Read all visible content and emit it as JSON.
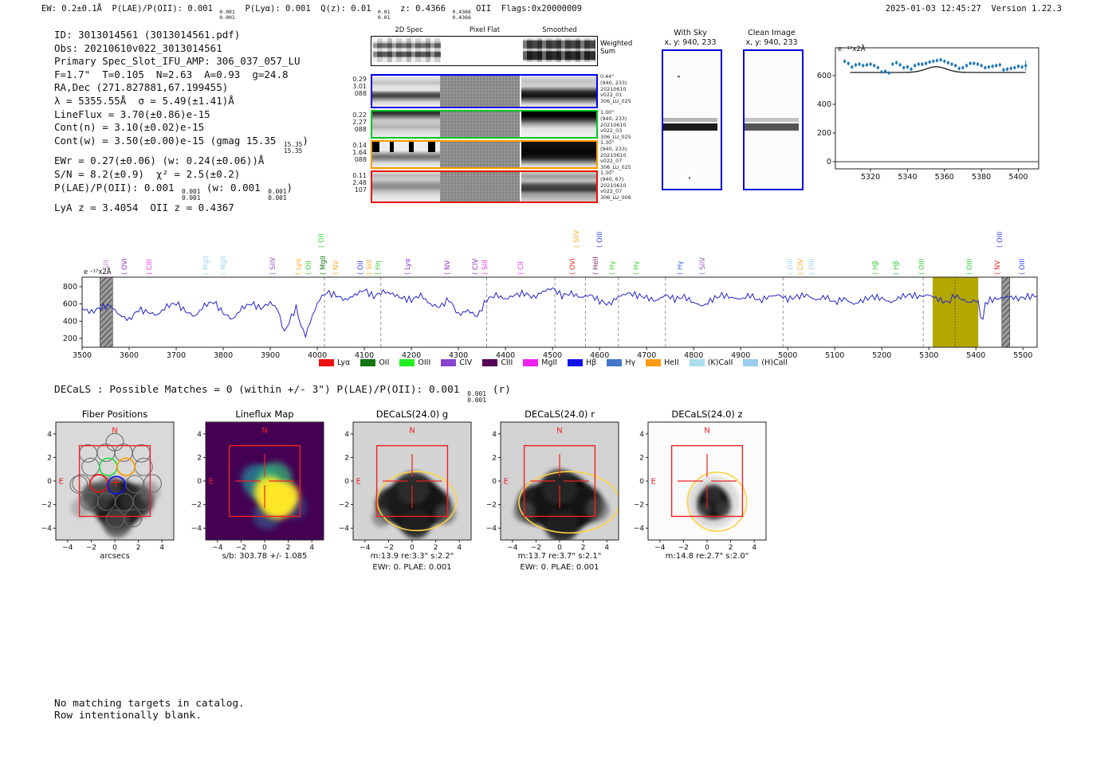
{
  "header": {
    "tokens": [
      {
        "t": "EW: 0.2±0.1Å  P(LAE)/P(OII): 0.001 "
      },
      {
        "frac": [
          "0.001",
          "0.001"
        ]
      },
      {
        "t": "  P(Lyα): 0.001  Q(z): 0.01 "
      },
      {
        "frac": [
          "0.01",
          "0.01"
        ]
      },
      {
        "t": "  z: 0.4366 "
      },
      {
        "frac": [
          "0.4366",
          "0.4366"
        ]
      },
      {
        "t": " OII  Flags:0x20000009"
      }
    ],
    "timestamp": "2025-01-03 12:45:27  Version 1.22.3"
  },
  "info": {
    "lines": [
      [
        {
          "t": "ID: 3013014561 (3013014561.pdf)"
        }
      ],
      [
        {
          "t": "Obs: 20210610v022_3013014561"
        }
      ],
      [
        {
          "t": "Primary Spec_Slot_IFU_AMP: 306_037_057_LU"
        }
      ],
      [
        {
          "t": "F=1.7\"  T=0.105  N=2.63  A=0.93  g=24.8"
        }
      ],
      [
        {
          "t": "RA,Dec (271.827881,67.199455)"
        }
      ],
      [
        {
          "t": "λ = 5355.55Å  σ = 5.49(±1.41)Å"
        }
      ],
      [
        {
          "t": "LineFlux = 3.70(±0.86)e-15"
        }
      ],
      [
        {
          "t": "Cont(n) = 3.10(±0.02)e-15"
        }
      ],
      [
        {
          "t": "Cont(w) = 3.50(±0.00)e-15 (gmag 15.35 "
        },
        {
          "frac": [
            "15.35",
            "15.35"
          ]
        },
        {
          "t": ")"
        }
      ],
      [
        {
          "t": "EWr = 0.27(±0.06) (w: 0.24(±0.06))Å"
        }
      ],
      [
        {
          "t": "S/N = 8.2(±0.9)  χ² = 2.5(±0.2)"
        }
      ],
      [
        {
          "t": "P(LAE)/P(OII): 0.001 "
        },
        {
          "frac": [
            "0.001",
            "0.001"
          ]
        },
        {
          "t": " (w: 0.001 "
        },
        {
          "frac": [
            "0.001",
            "0.001"
          ]
        },
        {
          "t": ")"
        }
      ],
      [
        {
          "t": "LyA z = 3.4054  OII z = 0.4367"
        }
      ]
    ]
  },
  "twod": {
    "col_titles": [
      "2D Spec",
      "Pixel Flat",
      "Smoothed"
    ],
    "weighted": [
      "Weighted",
      "Sum"
    ],
    "rows": [
      {
        "color": "#0000ee",
        "left": [
          "0.29",
          "3.01",
          "088"
        ],
        "right": [
          "0.44\"",
          "(940, 233)",
          "20210610",
          "v022_01",
          "306_LU_025"
        ]
      },
      {
        "color": "#00c420",
        "left": [
          "0.22",
          "2.27",
          "088"
        ],
        "right": [
          "1.00\"",
          "(940, 233)",
          "20210610",
          "v022_03",
          "306_LU_025"
        ]
      },
      {
        "color": "#ff9900",
        "left": [
          "0.14",
          "1.64",
          "088"
        ],
        "right": [
          "1.30\"",
          "(940, 233)",
          "20210610",
          "v022_07",
          "306_LU_025"
        ]
      },
      {
        "color": "#ee1100",
        "left": [
          "0.11",
          "2.48",
          "107"
        ],
        "right": [
          "1.30\"",
          "(940, 67)",
          "20210610",
          "v022_07",
          "306_LU_006"
        ]
      }
    ]
  },
  "sky_panels": {
    "with_sky": {
      "title": "With Sky",
      "coords": "x, y: 940, 233"
    },
    "clean": {
      "title": "Clean Image",
      "coords": "x, y: 940, 233"
    }
  },
  "flux_unit_tokens": [
    {
      "t": "e"
    },
    {
      "frac": [
        "−17",
        ""
      ]
    },
    {
      "t": "x2Å"
    }
  ],
  "decals_line": [
    {
      "t": "DECaLS : Possible Matches = 0 (within +/- 3\")  P(LAE)/P(OII): 0.001 "
    },
    {
      "frac": [
        "0.001",
        "0.001"
      ]
    },
    {
      "t": " (r)"
    }
  ],
  "chart_data": [
    {
      "type": "scatter",
      "name": "emission-line-zoom",
      "xlim": [
        5301,
        5411
      ],
      "ylim": [
        -50,
        794
      ],
      "xticks": [
        5320,
        5340,
        5360,
        5380,
        5400
      ],
      "yticks": [
        0,
        200,
        400,
        600
      ],
      "x": [
        5306,
        5308,
        5310,
        5312,
        5314,
        5316,
        5318,
        5320,
        5322,
        5324,
        5326,
        5328,
        5330,
        5332,
        5334,
        5336,
        5338,
        5340,
        5342,
        5344,
        5346,
        5348,
        5350,
        5352,
        5354,
        5356,
        5358,
        5360,
        5362,
        5364,
        5366,
        5368,
        5370,
        5372,
        5374,
        5376,
        5378,
        5380,
        5382,
        5384,
        5386,
        5388,
        5390,
        5392,
        5394,
        5396,
        5398,
        5400,
        5402,
        5404
      ],
      "y": [
        700,
        685,
        660,
        675,
        680,
        670,
        675,
        680,
        670,
        655,
        625,
        630,
        618,
        680,
        690,
        675,
        655,
        660,
        645,
        670,
        680,
        680,
        685,
        695,
        700,
        705,
        710,
        700,
        690,
        680,
        670,
        650,
        655,
        670,
        685,
        685,
        680,
        670,
        655,
        660,
        665,
        670,
        675,
        640,
        645,
        650,
        655,
        665,
        660,
        670
      ],
      "yerr": 14,
      "yerr_last": 36,
      "fit": {
        "baseline": 622,
        "amplitude": 40,
        "center": 5355.55,
        "sigma": 5.49
      },
      "marker_color": "#1f77b4",
      "fit_color": "#1a1a1a"
    },
    {
      "type": "line",
      "name": "full-spectrum",
      "xlim": [
        3500,
        5530
      ],
      "ylim": [
        98,
        911
      ],
      "xticks": [
        3500,
        3600,
        3700,
        3800,
        3900,
        4000,
        4100,
        4200,
        4300,
        4400,
        4500,
        4600,
        4700,
        4800,
        4900,
        5000,
        5100,
        5200,
        5300,
        5400,
        5500
      ],
      "yticks": [
        200,
        400,
        600,
        800
      ],
      "x": [
        3500,
        3520,
        3540,
        3560,
        3580,
        3600,
        3620,
        3640,
        3660,
        3680,
        3700,
        3720,
        3740,
        3760,
        3780,
        3800,
        3820,
        3840,
        3860,
        3880,
        3900,
        3915,
        3930,
        3945,
        3955,
        3965,
        3975,
        3990,
        4005,
        4020,
        4040,
        4060,
        4080,
        4100,
        4120,
        4140,
        4160,
        4180,
        4200,
        4220,
        4240,
        4260,
        4280,
        4300,
        4320,
        4340,
        4360,
        4380,
        4400,
        4420,
        4440,
        4460,
        4480,
        4500,
        4520,
        4540,
        4560,
        4580,
        4600,
        4620,
        4640,
        4660,
        4680,
        4700,
        4720,
        4740,
        4760,
        4780,
        4800,
        4820,
        4840,
        4860,
        4880,
        4900,
        4920,
        4940,
        4960,
        4980,
        5000,
        5020,
        5040,
        5060,
        5080,
        5100,
        5120,
        5140,
        5160,
        5180,
        5200,
        5220,
        5240,
        5260,
        5280,
        5300,
        5320,
        5340,
        5355,
        5370,
        5385,
        5400,
        5408,
        5413,
        5418,
        5430,
        5450,
        5470,
        5490,
        5510,
        5530
      ],
      "y": [
        545,
        505,
        560,
        580,
        470,
        415,
        535,
        505,
        470,
        575,
        610,
        515,
        455,
        585,
        625,
        495,
        420,
        555,
        605,
        550,
        615,
        545,
        270,
        450,
        560,
        350,
        235,
        470,
        660,
        735,
        700,
        645,
        705,
        765,
        685,
        745,
        715,
        670,
        645,
        705,
        595,
        565,
        655,
        475,
        525,
        455,
        650,
        705,
        655,
        705,
        725,
        675,
        745,
        785,
        695,
        725,
        675,
        705,
        635,
        595,
        685,
        725,
        700,
        675,
        635,
        705,
        655,
        685,
        615,
        575,
        655,
        705,
        675,
        655,
        705,
        635,
        685,
        705,
        655,
        685,
        705,
        645,
        685,
        615,
        665,
        595,
        645,
        685,
        665,
        615,
        685,
        705,
        685,
        705,
        655,
        615,
        700,
        655,
        615,
        645,
        590,
        285,
        600,
        645,
        665,
        685,
        660,
        685,
        695
      ],
      "line_color": "#2222cc",
      "bands": [
        {
          "x0": 3538,
          "x1": 3565,
          "style": "hatch"
        },
        {
          "x0": 5308,
          "x1": 5405,
          "style": "solid",
          "color": "#b3a702"
        },
        {
          "x0": 5455,
          "x1": 5472,
          "style": "hatch"
        }
      ],
      "vlines_dashed": [
        4015,
        4135,
        4360,
        4505,
        4570,
        4640,
        4740,
        4990,
        5288
      ],
      "vline_dotted": 5355.55,
      "line_labels": [
        {
          "x": 143,
          "text": "( SiII",
          "color": "#c973d6"
        },
        {
          "x": 166,
          "text": "( OVI",
          "color": "#8e2fc3"
        },
        {
          "x": 197,
          "text": "( CIII",
          "color": "#ee33ee"
        },
        {
          "x": 268,
          "text": "( MgII",
          "color": "#9fd4ee"
        },
        {
          "x": 290,
          "text": "( MgII",
          "color": "#9fd4ee"
        },
        {
          "x": 352,
          "text": "( SiIV",
          "color": "#9955cc"
        },
        {
          "x": 384,
          "text": "( Lyα",
          "color": "#ffaa22"
        },
        {
          "x": 397,
          "text": "( OII",
          "color": "#33cc33"
        },
        {
          "x": 413,
          "text": "( OII",
          "color": "#33dd33",
          "raised": true
        },
        {
          "x": 415,
          "text": "( MgII",
          "color": "#117711"
        },
        {
          "x": 431,
          "text": "( NV",
          "color": "#ffaa22"
        },
        {
          "x": 462,
          "text": "( OII",
          "color": "#3344ee"
        },
        {
          "x": 473,
          "text": "( SiII",
          "color": "#ffaa22"
        },
        {
          "x": 484,
          "text": "( Hη",
          "color": "#33cc33"
        },
        {
          "x": 521,
          "text": "( Lyα",
          "color": "#8e2fc3"
        },
        {
          "x": 571,
          "text": "( NV",
          "color": "#8e2fc3"
        },
        {
          "x": 606,
          "text": "( CIV",
          "color": "#8e2fc3"
        },
        {
          "x": 618,
          "text": "( SiII",
          "color": "#ee33ee"
        },
        {
          "x": 663,
          "text": "( CII",
          "color": "#ee33ee"
        },
        {
          "x": 728,
          "text": "( OVI",
          "color": "#ee2222"
        },
        {
          "x": 733,
          "text": "( SiIV",
          "color": "#ffaa22",
          "raised": true
        },
        {
          "x": 757,
          "text": "( HeII",
          "color": "#8a2466"
        },
        {
          "x": 762,
          "text": "( OIII",
          "color": "#3344ee",
          "raised": true
        },
        {
          "x": 778,
          "text": "( Hγ",
          "color": "#33cc33"
        },
        {
          "x": 808,
          "text": "( Hγ",
          "color": "#33cc33"
        },
        {
          "x": 863,
          "text": "( Hγ",
          "color": "#3366cc"
        },
        {
          "x": 891,
          "text": "( SiIV",
          "color": "#9955cc"
        },
        {
          "x": 1001,
          "text": "( OIII",
          "color": "#9fd4ee"
        },
        {
          "x": 1014,
          "text": "( CIV",
          "color": "#ffaa22"
        },
        {
          "x": 1028,
          "text": "( OIII",
          "color": "#9fd4ee"
        },
        {
          "x": 1108,
          "text": "( Hβ",
          "color": "#33cc33"
        },
        {
          "x": 1134,
          "text": "( Hβ",
          "color": "#33cc33"
        },
        {
          "x": 1166,
          "text": "( OIII",
          "color": "#33cc33"
        },
        {
          "x": 1226,
          "text": "( OIII",
          "color": "#33cc33"
        },
        {
          "x": 1261,
          "text": "( NV",
          "color": "#ee2222"
        },
        {
          "x": 1264,
          "text": "( OIII",
          "color": "#3344ee",
          "raised": true
        },
        {
          "x": 1292,
          "text": "( OIII",
          "color": "#3344ee"
        }
      ],
      "legend": [
        {
          "label": "Lyα",
          "color": "#ee1111"
        },
        {
          "label": "OII",
          "color": "#117711"
        },
        {
          "label": "OIII",
          "color": "#22ee22"
        },
        {
          "label": "CIV",
          "color": "#8844cc"
        },
        {
          "label": "CIII",
          "color": "#550055"
        },
        {
          "label": "MgII",
          "color": "#ee22ee"
        },
        {
          "label": "Hβ",
          "color": "#1111ee"
        },
        {
          "label": "Hγ",
          "color": "#4477cc"
        },
        {
          "label": "HeII",
          "color": "#ff9911"
        },
        {
          "label": "(K)CaII",
          "color": "#aaddee"
        },
        {
          "label": "(H)CaII",
          "color": "#99ccee"
        }
      ]
    }
  ],
  "cutouts": {
    "tick_labels": [
      "−4",
      "−2",
      "0",
      "2",
      "4"
    ],
    "tick_values": [
      -4,
      -2,
      0,
      2,
      4
    ],
    "compass": {
      "n": "N",
      "e": "E"
    },
    "panels": [
      {
        "key": "fiber",
        "title": "Fiber Positions",
        "caption1": "arcsecs",
        "caption2": ""
      },
      {
        "key": "flux",
        "title": "Lineflux Map",
        "caption1": "s/b: 303.78 +/- 1.085",
        "caption2": ""
      },
      {
        "key": "g",
        "title": "DECaLS(24.0) g",
        "caption1": "m:13.9  re:3.3\"  s:2.2\"",
        "caption2": "EWr: 0. PLAE: 0.001"
      },
      {
        "key": "r",
        "title": "DECaLS(24.0) r",
        "caption1": "m:13.7  re:3.7\"  s:2.1\"",
        "caption2": "EWr: 0. PLAE: 0.001"
      },
      {
        "key": "z",
        "title": "DECaLS(24.0) z",
        "caption1": "m:14.8  re:2.7\"  s:2.0\"",
        "caption2": ""
      }
    ]
  },
  "footer": {
    "lines": [
      "No matching targets in catalog.",
      "Row intentionally blank."
    ]
  }
}
